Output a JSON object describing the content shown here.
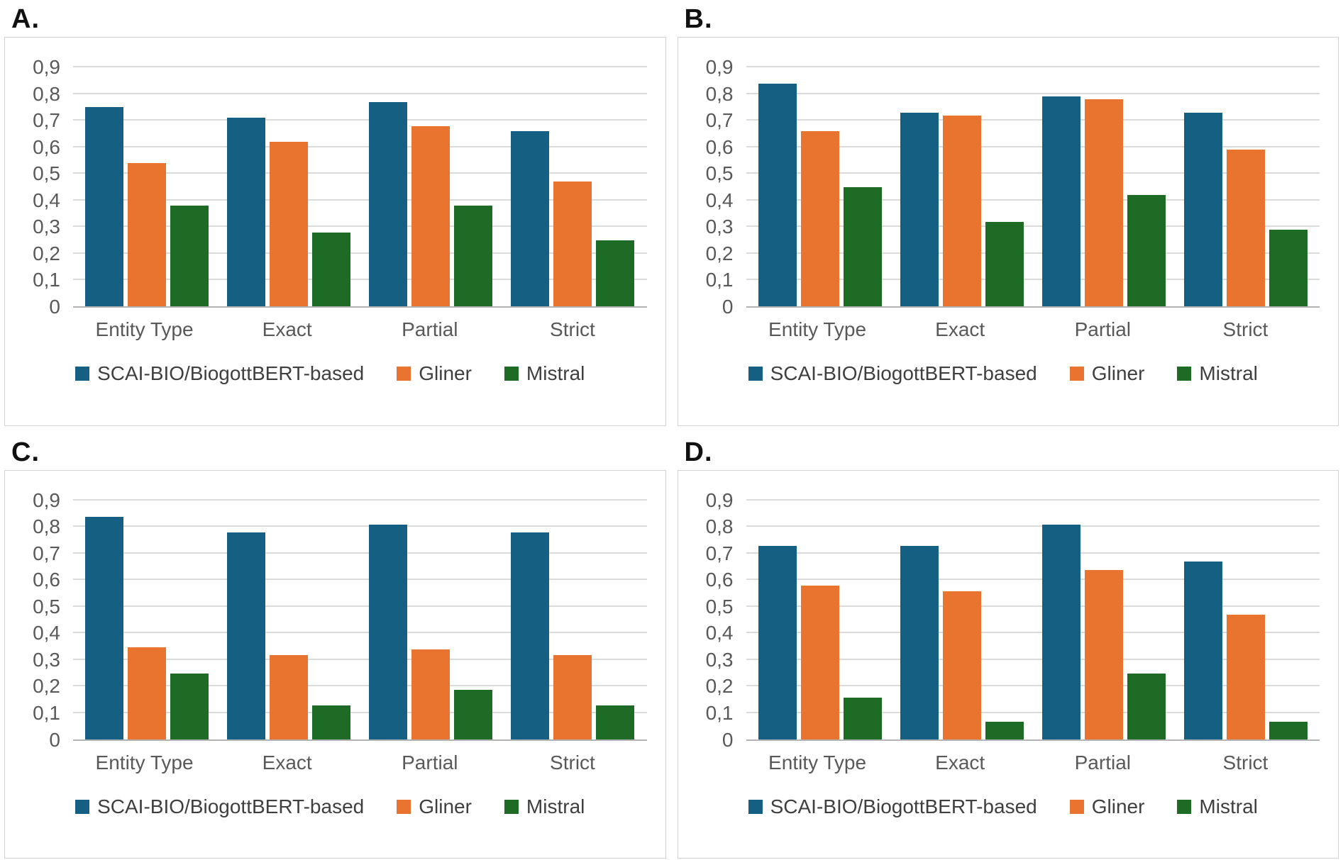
{
  "panels": [
    {
      "label": "A."
    },
    {
      "label": "B."
    },
    {
      "label": "C."
    },
    {
      "label": "D."
    }
  ],
  "colors": {
    "scai_blue": "#155f82",
    "gliner_orange": "#e8742f",
    "mistral_green": "#1d6b24",
    "axis_text": "#595959",
    "legend_text": "#3f3f3f",
    "gridline": "#dbdbdb",
    "baseline": "#b3b3b3",
    "box_border": "#d2d2d2"
  },
  "chart_data": [
    {
      "type": "bar",
      "panel": "A.",
      "title": "",
      "xlabel": "",
      "ylabel": "",
      "categories": [
        "Entity Type",
        "Exact",
        "Partial",
        "Strict"
      ],
      "series": [
        {
          "name": "SCAI-BIO/BiogottBERT-based",
          "color": "#155f82",
          "values": [
            0.75,
            0.71,
            0.77,
            0.66
          ]
        },
        {
          "name": "Gliner",
          "color": "#e8742f",
          "values": [
            0.54,
            0.62,
            0.68,
            0.47
          ]
        },
        {
          "name": "Mistral",
          "color": "#1d6b24",
          "values": [
            0.38,
            0.28,
            0.38,
            0.25
          ]
        }
      ],
      "ylim": [
        0,
        0.9
      ],
      "ytick_step": 0.1,
      "decimal_separator": ",",
      "grid": true,
      "legend_position": "bottom"
    },
    {
      "type": "bar",
      "panel": "B.",
      "title": "",
      "xlabel": "",
      "ylabel": "",
      "categories": [
        "Entity Type",
        "Exact",
        "Partial",
        "Strict"
      ],
      "series": [
        {
          "name": "SCAI-BIO/BiogottBERT-based",
          "color": "#155f82",
          "values": [
            0.84,
            0.73,
            0.79,
            0.73
          ]
        },
        {
          "name": "Gliner",
          "color": "#e8742f",
          "values": [
            0.66,
            0.72,
            0.78,
            0.59
          ]
        },
        {
          "name": "Mistral",
          "color": "#1d6b24",
          "values": [
            0.45,
            0.32,
            0.42,
            0.29
          ]
        }
      ],
      "ylim": [
        0,
        0.9
      ],
      "ytick_step": 0.1,
      "decimal_separator": ",",
      "grid": true,
      "legend_position": "bottom"
    },
    {
      "type": "bar",
      "panel": "C.",
      "title": "",
      "xlabel": "",
      "ylabel": "",
      "categories": [
        "Entity Type",
        "Exact",
        "Partial",
        "Strict"
      ],
      "series": [
        {
          "name": "SCAI-BIO/BiogottBERT-based",
          "color": "#155f82",
          "values": [
            0.84,
            0.78,
            0.81,
            0.78
          ]
        },
        {
          "name": "Gliner",
          "color": "#e8742f",
          "values": [
            0.35,
            0.32,
            0.34,
            0.32
          ]
        },
        {
          "name": "Mistral",
          "color": "#1d6b24",
          "values": [
            0.25,
            0.13,
            0.19,
            0.13
          ]
        }
      ],
      "ylim": [
        0,
        0.9
      ],
      "ytick_step": 0.1,
      "decimal_separator": ",",
      "grid": true,
      "legend_position": "bottom"
    },
    {
      "type": "bar",
      "panel": "D.",
      "title": "",
      "xlabel": "",
      "ylabel": "",
      "categories": [
        "Entity Type",
        "Exact",
        "Partial",
        "Strict"
      ],
      "series": [
        {
          "name": "SCAI-BIO/BiogottBERT-based",
          "color": "#155f82",
          "values": [
            0.73,
            0.73,
            0.81,
            0.67
          ]
        },
        {
          "name": "Gliner",
          "color": "#e8742f",
          "values": [
            0.58,
            0.56,
            0.64,
            0.47
          ]
        },
        {
          "name": "Mistral",
          "color": "#1d6b24",
          "values": [
            0.16,
            0.07,
            0.25,
            0.07
          ]
        }
      ],
      "ylim": [
        0,
        0.9
      ],
      "ytick_step": 0.1,
      "decimal_separator": ",",
      "grid": true,
      "legend_position": "bottom"
    }
  ]
}
